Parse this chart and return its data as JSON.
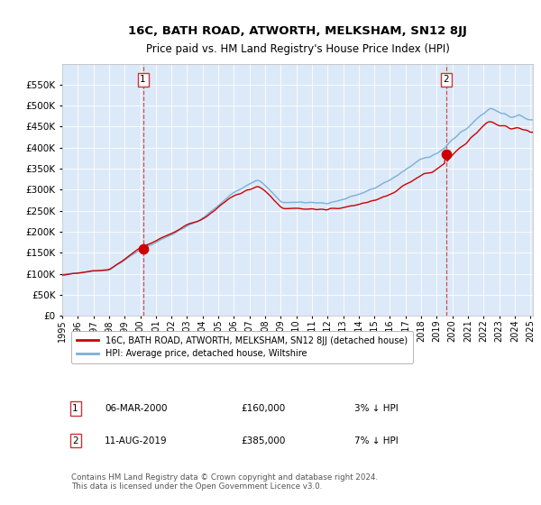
{
  "title": "16C, BATH ROAD, ATWORTH, MELKSHAM, SN12 8JJ",
  "subtitle": "Price paid vs. HM Land Registry's House Price Index (HPI)",
  "red_label": "16C, BATH ROAD, ATWORTH, MELKSHAM, SN12 8JJ (detached house)",
  "blue_label": "HPI: Average price, detached house, Wiltshire",
  "annotation1_date": "06-MAR-2000",
  "annotation1_price": 160000,
  "annotation1_pct": "3% ↓ HPI",
  "annotation2_date": "11-AUG-2019",
  "annotation2_price": 385000,
  "annotation2_pct": "7% ↓ HPI",
  "footer": "Contains HM Land Registry data © Crown copyright and database right 2024.\nThis data is licensed under the Open Government Licence v3.0.",
  "ylim_max": 600000,
  "background_color": "#dce9f8",
  "red_color": "#cc0000",
  "blue_color": "#7ab0d4",
  "grid_color": "#ffffff",
  "vline_color": "#cc3333",
  "marker_color": "#cc0000",
  "title_fontsize": 9.5,
  "subtitle_fontsize": 8.5
}
